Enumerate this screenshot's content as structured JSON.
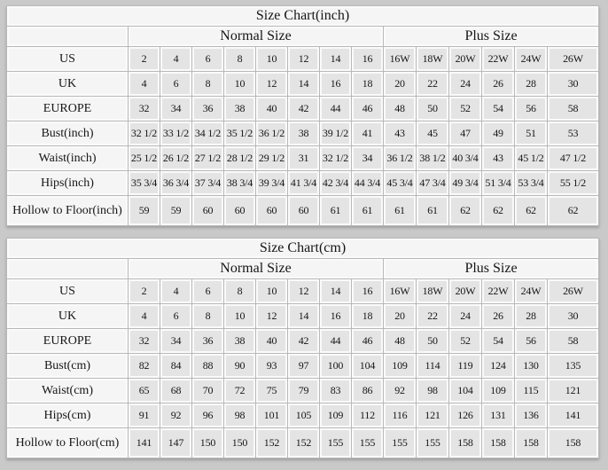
{
  "page": {
    "background": "#c9c9c9",
    "cell_color": "#e4e4e4",
    "label_color": "#f5f5f5",
    "grid_line_color": "#b9b9b9"
  },
  "tables": [
    {
      "title": "Size Chart(inch)",
      "normal_header": "Normal Size",
      "plus_header": "Plus Size",
      "rows": [
        {
          "label": "US",
          "values": [
            "2",
            "4",
            "6",
            "8",
            "10",
            "12",
            "14",
            "16",
            "16W",
            "18W",
            "20W",
            "22W",
            "24W",
            "26W"
          ]
        },
        {
          "label": "UK",
          "values": [
            "4",
            "6",
            "8",
            "10",
            "12",
            "14",
            "16",
            "18",
            "20",
            "22",
            "24",
            "26",
            "28",
            "30"
          ]
        },
        {
          "label": "EUROPE",
          "values": [
            "32",
            "34",
            "36",
            "38",
            "40",
            "42",
            "44",
            "46",
            "48",
            "50",
            "52",
            "54",
            "56",
            "58"
          ]
        },
        {
          "label": "Bust(inch)",
          "values": [
            "32 1/2",
            "33 1/2",
            "34 1/2",
            "35 1/2",
            "36 1/2",
            "38",
            "39 1/2",
            "41",
            "43",
            "45",
            "47",
            "49",
            "51",
            "53"
          ]
        },
        {
          "label": "Waist(inch)",
          "values": [
            "25 1/2",
            "26 1/2",
            "27 1/2",
            "28 1/2",
            "29 1/2",
            "31",
            "32 1/2",
            "34",
            "36 1/2",
            "38 1/2",
            "40 3/4",
            "43",
            "45 1/2",
            "47 1/2"
          ]
        },
        {
          "label": "Hips(inch)",
          "values": [
            "35 3/4",
            "36 3/4",
            "37 3/4",
            "38 3/4",
            "39 3/4",
            "41 3/4",
            "42 3/4",
            "44 3/4",
            "45 3/4",
            "47 3/4",
            "49 3/4",
            "51 3/4",
            "53 3/4",
            "55 1/2"
          ]
        },
        {
          "label": "Hollow to Floor(inch)",
          "values": [
            "59",
            "59",
            "60",
            "60",
            "60",
            "60",
            "61",
            "61",
            "61",
            "61",
            "62",
            "62",
            "62",
            "62"
          ]
        }
      ]
    },
    {
      "title": "Size Chart(cm)",
      "normal_header": "Normal Size",
      "plus_header": "Plus Size",
      "rows": [
        {
          "label": "US",
          "values": [
            "2",
            "4",
            "6",
            "8",
            "10",
            "12",
            "14",
            "16",
            "16W",
            "18W",
            "20W",
            "22W",
            "24W",
            "26W"
          ]
        },
        {
          "label": "UK",
          "values": [
            "4",
            "6",
            "8",
            "10",
            "12",
            "14",
            "16",
            "18",
            "20",
            "22",
            "24",
            "26",
            "28",
            "30"
          ]
        },
        {
          "label": "EUROPE",
          "values": [
            "32",
            "34",
            "36",
            "38",
            "40",
            "42",
            "44",
            "46",
            "48",
            "50",
            "52",
            "54",
            "56",
            "58"
          ]
        },
        {
          "label": "Bust(cm)",
          "values": [
            "82",
            "84",
            "88",
            "90",
            "93",
            "97",
            "100",
            "104",
            "109",
            "114",
            "119",
            "124",
            "130",
            "135"
          ]
        },
        {
          "label": "Waist(cm)",
          "values": [
            "65",
            "68",
            "70",
            "72",
            "75",
            "79",
            "83",
            "86",
            "92",
            "98",
            "104",
            "109",
            "115",
            "121"
          ]
        },
        {
          "label": "Hips(cm)",
          "values": [
            "91",
            "92",
            "96",
            "98",
            "101",
            "105",
            "109",
            "112",
            "116",
            "121",
            "126",
            "131",
            "136",
            "141"
          ]
        },
        {
          "label": "Hollow to Floor(cm)",
          "values": [
            "141",
            "147",
            "150",
            "150",
            "152",
            "152",
            "155",
            "155",
            "155",
            "155",
            "158",
            "158",
            "158",
            "158"
          ]
        }
      ]
    }
  ]
}
